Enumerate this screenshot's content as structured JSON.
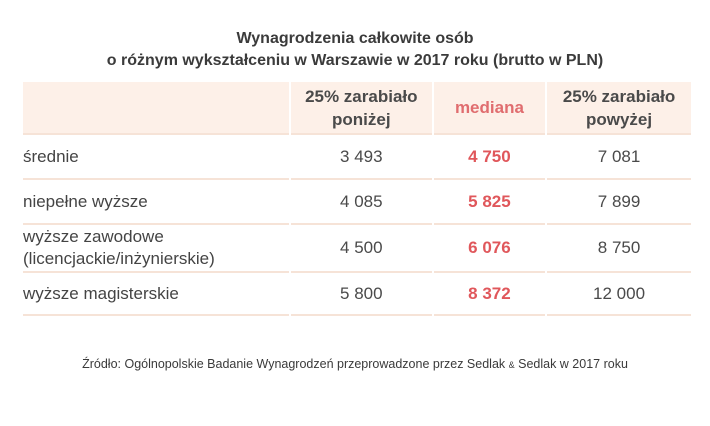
{
  "title": {
    "line1": "Wynagrodzenia całkowite osób",
    "line2": "o różnym wykształceniu w Warszawie w 2017 roku (brutto w PLN)"
  },
  "table": {
    "headers": [
      "",
      "25% zarabiało poniżej",
      "mediana",
      "25% zarabiało powyżej"
    ],
    "header_lines": {
      "low": [
        "25% zarabiało",
        "poniżej"
      ],
      "median": "mediana",
      "high": [
        "25% zarabiało",
        "powyżej"
      ]
    },
    "rows": [
      {
        "label": [
          "średnie"
        ],
        "low": "3 493",
        "median": "4 750",
        "high": "7 081"
      },
      {
        "label": [
          "niepełne wyższe"
        ],
        "low": "4 085",
        "median": "5 825",
        "high": "7 899"
      },
      {
        "label": [
          "wyższe zawodowe",
          "(licencjackie/inżynierskie)"
        ],
        "low": "4 500",
        "median": "6 076",
        "high": "8 750"
      },
      {
        "label": [
          "wyższe magisterskie"
        ],
        "low": "5 800",
        "median": "8 372",
        "high": "12 000"
      }
    ]
  },
  "source": {
    "before": "Źródło: Ogólnopolskie Badanie Wynagrodzeń przeprowadzone przez Sedlak ",
    "amp": "&",
    "after": " Sedlak w 2017 roku"
  },
  "colors": {
    "header_bg": "#fdf0e8",
    "row_border": "#f6e3d7",
    "median_accent": "#e0575b",
    "text": "#444444"
  }
}
